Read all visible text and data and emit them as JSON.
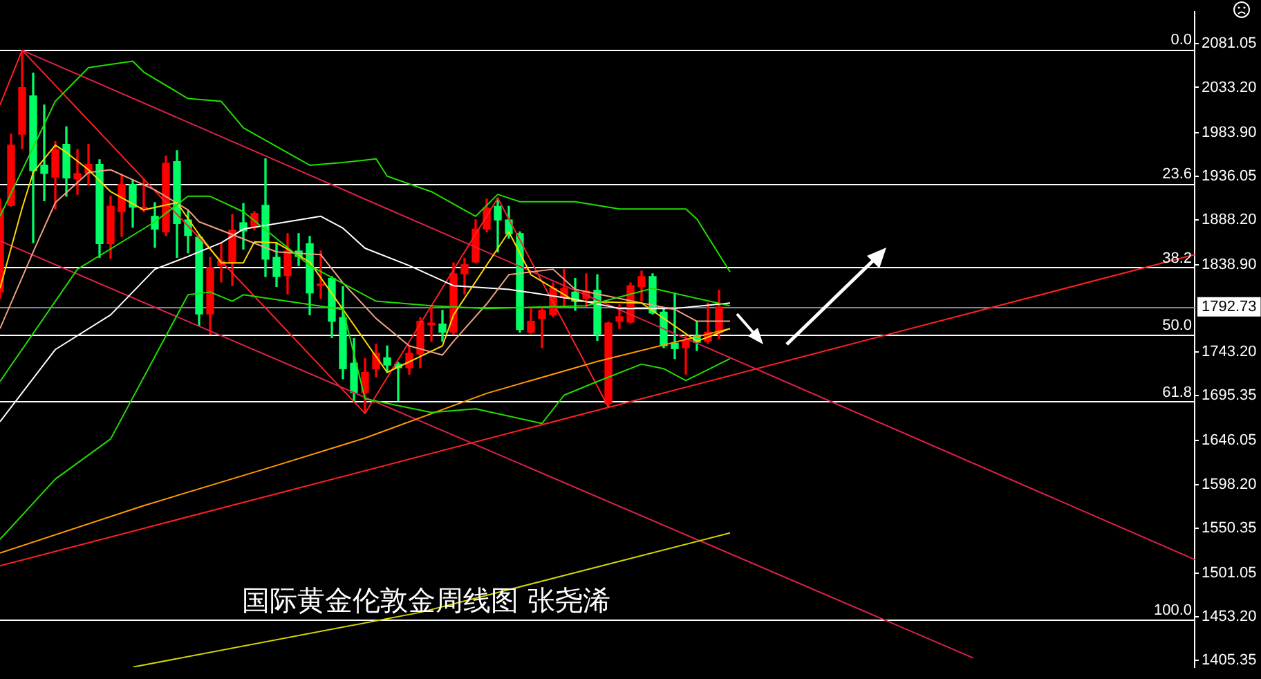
{
  "chart_data": {
    "type": "candlestick",
    "title": "国际黄金伦敦金周线图 张尧浠",
    "categories": [
      null,
      null,
      null,
      null,
      null,
      null,
      null,
      null,
      null,
      null,
      null,
      null,
      null,
      null,
      null,
      null,
      null,
      null,
      null,
      null,
      null,
      null,
      null,
      null,
      null,
      null,
      null,
      null,
      null,
      null,
      null,
      null,
      null,
      null,
      null,
      null,
      null,
      null,
      null,
      null,
      null,
      null,
      null,
      null,
      null,
      null,
      null,
      null,
      null,
      null,
      null,
      null,
      null,
      null,
      null,
      null,
      null,
      null,
      null,
      null,
      null,
      null,
      null,
      null,
      null,
      null,
      null,
      null,
      null,
      null,
      null,
      null,
      null,
      null,
      null,
      null,
      null,
      null,
      null,
      null,
      null,
      null,
      null,
      null,
      null,
      null,
      null,
      null,
      null,
      null,
      null,
      null,
      null,
      null,
      null,
      null,
      null,
      null,
      null,
      null,
      null,
      null,
      null,
      null,
      null,
      null,
      null,
      null,
      null
    ],
    "ohlc": [
      [
        1809,
        1911,
        1802,
        1900
      ],
      [
        1904,
        1982,
        1903,
        1970
      ],
      [
        1982,
        2074,
        1966,
        2033
      ],
      [
        2024,
        2049,
        1863,
        1942
      ],
      [
        1948,
        2014,
        1909,
        1939
      ],
      [
        1935,
        1974,
        1900,
        1965
      ],
      [
        1971,
        1990,
        1914,
        1934
      ],
      [
        1933,
        1965,
        1916,
        1939
      ],
      [
        1939,
        1971,
        1926,
        1949
      ],
      [
        1949,
        1954,
        1847,
        1862
      ],
      [
        1862,
        1914,
        1846,
        1903
      ],
      [
        1897,
        1938,
        1870,
        1927
      ],
      [
        1927,
        1932,
        1880,
        1902
      ],
      [
        1899,
        1933,
        1897,
        1902
      ],
      [
        1892,
        1907,
        1858,
        1878
      ],
      [
        1875,
        1958,
        1871,
        1950
      ],
      [
        1952,
        1964,
        1847,
        1884
      ],
      [
        1888,
        1898,
        1852,
        1871
      ],
      [
        1869,
        1872,
        1772,
        1785
      ],
      [
        1785,
        1847,
        1763,
        1836
      ],
      [
        1838,
        1862,
        1820,
        1843
      ],
      [
        1841,
        1894,
        1816,
        1877
      ],
      [
        1885,
        1906,
        1856,
        1876
      ],
      [
        1880,
        1897,
        1877,
        1895
      ],
      [
        1904,
        1955,
        1826,
        1845
      ],
      [
        1847,
        1863,
        1815,
        1826
      ],
      [
        1827,
        1873,
        1807,
        1854
      ],
      [
        1854,
        1873,
        1838,
        1848
      ],
      [
        1862,
        1870,
        1784,
        1808
      ],
      [
        1816,
        1854,
        1802,
        1818
      ],
      [
        1824,
        1826,
        1759,
        1777
      ],
      [
        1781,
        1815,
        1714,
        1725
      ],
      [
        1731,
        1758,
        1690,
        1699
      ],
      [
        1699,
        1736,
        1676,
        1721
      ],
      [
        1725,
        1752,
        1716,
        1742
      ],
      [
        1737,
        1750,
        1721,
        1729
      ],
      [
        1730,
        1732,
        1690,
        1726
      ],
      [
        1726,
        1750,
        1719,
        1742
      ],
      [
        1741,
        1781,
        1726,
        1777
      ],
      [
        1773,
        1794,
        1755,
        1775
      ],
      [
        1774,
        1789,
        1755,
        1765
      ],
      [
        1765,
        1841,
        1763,
        1829
      ],
      [
        1829,
        1846,
        1807,
        1839
      ],
      [
        1842,
        1888,
        1841,
        1878
      ],
      [
        1878,
        1911,
        1875,
        1901
      ],
      [
        1903,
        1912,
        1853,
        1888
      ],
      [
        1888,
        1903,
        1868,
        1873
      ],
      [
        1873,
        1875,
        1765,
        1768
      ],
      [
        1765,
        1792,
        1764,
        1777
      ],
      [
        1780,
        1792,
        1748,
        1789
      ],
      [
        1784,
        1819,
        1782,
        1813
      ],
      [
        1804,
        1834,
        1794,
        1813
      ],
      [
        1809,
        1824,
        1789,
        1799
      ],
      [
        1802,
        1829,
        1793,
        1810
      ],
      [
        1811,
        1828,
        1756,
        1763
      ],
      [
        1687,
        1776,
        1683,
        1775
      ],
      [
        1777,
        1795,
        1769,
        1782
      ],
      [
        1776,
        1819,
        1775,
        1816
      ],
      [
        1815,
        1832,
        1799,
        1826
      ],
      [
        1826,
        1829,
        1785,
        1786
      ],
      [
        1787,
        1792,
        1748,
        1750
      ],
      [
        1753,
        1808,
        1736,
        1747
      ],
      [
        1748,
        1761,
        1719,
        1756
      ],
      [
        1761,
        1777,
        1745,
        1754
      ],
      [
        1755,
        1797,
        1753,
        1765
      ],
      [
        1765,
        1811,
        1758,
        1792.73
      ],
      null,
      null,
      null,
      null,
      null,
      null,
      null,
      null,
      null,
      null,
      null,
      null,
      null,
      null,
      null,
      null,
      null,
      null,
      null,
      null,
      null,
      null,
      null,
      null,
      null,
      null,
      null,
      null,
      null,
      null,
      null,
      null,
      null,
      null,
      null,
      null,
      null,
      null,
      null,
      null,
      null,
      null,
      null
    ],
    "colors": [
      "#ff0000",
      "#ff0000",
      "#ff0000",
      "#00ff66",
      "#00ff66",
      "#ff0000",
      "#00ff66",
      "#ff0000",
      "#ff0000",
      "#00ff66",
      "#ff0000",
      "#ff0000",
      "#00ff66",
      "#ff0000",
      "#00ff66",
      "#ff0000",
      "#00ff66",
      "#00ff66",
      "#00ff66",
      "#ff0000",
      "#ff0000",
      "#ff0000",
      "#00ff66",
      "#ff0000",
      "#00ff66",
      "#00ff66",
      "#ff0000",
      "#00ff66",
      "#00ff66",
      "#ff0000",
      "#00ff66",
      "#00ff66",
      "#00ff66",
      "#ff0000",
      "#ff0000",
      "#00ff66",
      "#00ff66",
      "#ff0000",
      "#ff0000",
      "#ff0000",
      "#00ff66",
      "#ff0000",
      "#ff0000",
      "#ff0000",
      "#ff0000",
      "#00ff66",
      "#00ff66",
      "#00ff66",
      "#ff0000",
      "#ff0000",
      "#ff0000",
      "#ff0000",
      "#00ff66",
      "#ff0000",
      "#00ff66",
      "#ff0000",
      "#ff0000",
      "#ff0000",
      "#ff0000",
      "#00ff66",
      "#00ff66",
      "#00ff66",
      "#ff0000",
      "#00ff66",
      "#ff0000",
      "#ff0000",
      null,
      null,
      null,
      null,
      null,
      null,
      null,
      null,
      null,
      null,
      null,
      null,
      null,
      null,
      null,
      null,
      null,
      null,
      null,
      null,
      null,
      null,
      null,
      null,
      null,
      null,
      null,
      null,
      null,
      null,
      null,
      null,
      null,
      null,
      null,
      null,
      null,
      null,
      null,
      null,
      null,
      null,
      null
    ],
    "series": [
      {
        "type": "line",
        "color": "#22dd00",
        "values": [
          1892,
          null,
          null,
          null,
          null,
          2018,
          null,
          null,
          2055,
          null,
          null,
          null,
          2062,
          2050,
          null,
          null,
          null,
          2021,
          null,
          null,
          2018,
          null,
          1989,
          null,
          null,
          null,
          null,
          null,
          1948,
          null,
          null,
          1951,
          null,
          null,
          1955,
          1936,
          null,
          null,
          null,
          1919,
          null,
          null,
          null,
          1892,
          null,
          1916,
          null,
          1908,
          null,
          null,
          null,
          null,
          1908,
          null,
          null,
          null,
          1900,
          null,
          null,
          null,
          null,
          null,
          1900,
          1889,
          null,
          null,
          1831,
          null,
          null,
          null,
          null,
          null,
          null,
          null,
          null,
          null,
          null,
          null,
          null,
          null,
          null,
          null,
          null,
          null,
          null,
          null,
          null,
          null,
          null,
          null,
          null,
          null,
          null,
          null,
          null,
          null,
          null,
          null,
          null,
          null,
          null,
          null,
          null,
          null,
          null,
          null,
          null,
          null,
          null
        ]
      },
      {
        "type": "line",
        "color": "#22dd00",
        "values": [
          1711,
          null,
          null,
          null,
          null,
          null,
          null,
          1834,
          null,
          null,
          null,
          null,
          null,
          null,
          1886,
          null,
          null,
          1914,
          null,
          1914,
          null,
          null,
          1897,
          null,
          null,
          null,
          null,
          null,
          1838,
          null,
          null,
          null,
          null,
          null,
          1799,
          null,
          null,
          null,
          null,
          1794,
          null,
          null,
          null,
          null,
          1791,
          null,
          null,
          null,
          null,
          null,
          null,
          null,
          null,
          1794,
          null,
          null,
          null,
          null,
          null,
          1813,
          null,
          null,
          null,
          null,
          null,
          null,
          1794,
          null,
          null,
          null,
          null,
          null,
          null,
          null,
          null,
          null,
          null,
          null,
          null,
          null,
          null,
          null,
          null,
          null,
          null,
          null,
          null,
          null,
          null,
          null,
          null,
          null,
          null,
          null,
          null,
          null,
          null,
          null,
          null,
          null,
          null,
          null,
          null,
          null,
          null,
          null,
          null,
          null,
          null
        ]
      },
      {
        "type": "line",
        "color": "#22dd00",
        "values": [
          1538,
          null,
          null,
          null,
          null,
          1604,
          null,
          null,
          null,
          null,
          1648,
          null,
          null,
          null,
          null,
          null,
          null,
          1806,
          null,
          1809,
          null,
          1799,
          1806,
          null,
          null,
          null,
          null,
          null,
          null,
          null,
          null,
          1790,
          null,
          1692,
          null,
          null,
          null,
          null,
          null,
          1677,
          null,
          null,
          null,
          1681,
          null,
          null,
          null,
          null,
          null,
          1665,
          null,
          1696,
          null,
          null,
          1711,
          null,
          null,
          null,
          1730,
          null,
          1725,
          null,
          1712,
          null,
          null,
          null,
          1736,
          null,
          null,
          null,
          null,
          null,
          null,
          null,
          null,
          null,
          null,
          null,
          null,
          null,
          null,
          null,
          null,
          null,
          null,
          null,
          null,
          null,
          null,
          null,
          null,
          null,
          null,
          null,
          null,
          null,
          null,
          null,
          null,
          null,
          null,
          null,
          null,
          null,
          null,
          null,
          null,
          null,
          null
        ]
      },
      {
        "type": "line",
        "color": "#ffd700",
        "values": [
          1813,
          null,
          1901,
          1940,
          null,
          1970,
          1962,
          null,
          1943,
          null,
          1919,
          null,
          null,
          1899,
          null,
          null,
          1907,
          null,
          1872,
          null,
          1841,
          null,
          1841,
          1864,
          null,
          1863,
          null,
          null,
          1842,
          null,
          null,
          1790,
          null,
          null,
          null,
          1721,
          null,
          null,
          null,
          null,
          1750,
          1784,
          null,
          null,
          null,
          null,
          1875,
          null,
          1828,
          null,
          null,
          null,
          1799,
          null,
          null,
          null,
          null,
          null,
          1797,
          null,
          null,
          null,
          null,
          1755,
          null,
          null,
          1769,
          null,
          null,
          null,
          null,
          null,
          null,
          null,
          null,
          null,
          null,
          null,
          null,
          null,
          null,
          null,
          null,
          null,
          null,
          null,
          null,
          null,
          null,
          null,
          null,
          null,
          null,
          null,
          null,
          null,
          null,
          null,
          null,
          null,
          null,
          null,
          null,
          null,
          null,
          null,
          null,
          null,
          null
        ]
      },
      {
        "type": "line",
        "color": "#f0a080",
        "values": [
          1769,
          null,
          null,
          1853,
          null,
          1907,
          null,
          null,
          1940,
          null,
          1943,
          null,
          null,
          null,
          1921,
          null,
          null,
          1899,
          1886,
          null,
          null,
          1872,
          null,
          null,
          null,
          1853,
          null,
          null,
          null,
          1850,
          null,
          1819,
          null,
          null,
          1780,
          null,
          null,
          1750,
          null,
          null,
          1740,
          1755,
          null,
          null,
          1796,
          null,
          1828,
          null,
          null,
          null,
          1834,
          null,
          1812,
          null,
          null,
          null,
          null,
          null,
          1797,
          null,
          null,
          1790,
          null,
          1777,
          null,
          null,
          1777,
          null,
          null,
          null,
          null,
          null,
          null,
          null,
          null,
          null,
          null,
          null,
          null,
          null,
          null,
          null,
          null,
          null,
          null,
          null,
          null,
          null,
          null,
          null,
          null,
          null,
          null,
          null,
          null,
          null,
          null,
          null,
          null,
          null,
          null,
          null,
          null,
          null,
          null,
          null,
          null,
          null,
          null
        ]
      },
      {
        "type": "line",
        "color": "#ffffff",
        "values": [
          1667,
          null,
          null,
          null,
          null,
          1746,
          null,
          null,
          null,
          null,
          1784,
          null,
          null,
          null,
          1834,
          null,
          null,
          1848,
          null,
          null,
          1863,
          null,
          1878,
          null,
          1882,
          null,
          null,
          null,
          null,
          1892,
          null,
          1879,
          null,
          1857,
          null,
          null,
          null,
          1838,
          null,
          null,
          null,
          1816,
          null,
          null,
          null,
          null,
          1812,
          null,
          null,
          null,
          null,
          null,
          1801,
          null,
          null,
          null,
          1791,
          null,
          null,
          null,
          null,
          1791,
          null,
          null,
          null,
          null,
          1797,
          null,
          null,
          null,
          null,
          null,
          null,
          null,
          null,
          null,
          null,
          null,
          null,
          null,
          null,
          null,
          null,
          null,
          null,
          null,
          null,
          null,
          null,
          null,
          null,
          null,
          null,
          null,
          null,
          null,
          null,
          null,
          null,
          null,
          null,
          null,
          null,
          null,
          null,
          null,
          null,
          null,
          null
        ]
      },
      {
        "type": "line",
        "color": "#ff9900",
        "values": [
          1523,
          null,
          null,
          null,
          null,
          null,
          null,
          null,
          null,
          null,
          null,
          null,
          null,
          1575,
          null,
          null,
          null,
          null,
          null,
          null,
          null,
          null,
          null,
          null,
          null,
          1619,
          null,
          null,
          null,
          null,
          null,
          null,
          null,
          1649,
          null,
          null,
          null,
          null,
          null,
          null,
          null,
          null,
          null,
          null,
          1698,
          null,
          null,
          null,
          null,
          null,
          null,
          null,
          null,
          null,
          1733,
          null,
          null,
          null,
          null,
          null,
          null,
          null,
          null,
          null,
          null,
          null,
          1769,
          null,
          null,
          null,
          null,
          null,
          null,
          null,
          null,
          null,
          null,
          null,
          null,
          null,
          null,
          null,
          null,
          null,
          null,
          null,
          null,
          null,
          null,
          null,
          null,
          null,
          null,
          null,
          null,
          null,
          null,
          null,
          null,
          null,
          null,
          null,
          null,
          null,
          null,
          null,
          null,
          null,
          null
        ]
      },
      {
        "type": "line",
        "color": "#d4d400",
        "values": [
          null,
          null,
          null,
          null,
          null,
          null,
          null,
          null,
          null,
          null,
          null,
          null,
          1398,
          null,
          null,
          null,
          null,
          null,
          null,
          null,
          null,
          null,
          null,
          null,
          null,
          null,
          null,
          null,
          null,
          null,
          null,
          null,
          null,
          null,
          null,
          null,
          null,
          null,
          1458,
          null,
          null,
          null,
          null,
          null,
          null,
          null,
          null,
          null,
          null,
          null,
          null,
          null,
          null,
          null,
          null,
          null,
          null,
          null,
          null,
          null,
          null,
          null,
          null,
          null,
          null,
          null,
          1545,
          null,
          null,
          null,
          null,
          null,
          null,
          null,
          null,
          null,
          null,
          null,
          null,
          null,
          null,
          null,
          null,
          null,
          null,
          null,
          null,
          null,
          null,
          null,
          null,
          null,
          null,
          null,
          null,
          null,
          null,
          null,
          null,
          null,
          null,
          null,
          null,
          null,
          null,
          null,
          null,
          null,
          null
        ]
      },
      {
        "type": "line",
        "color": "#e0204a",
        "values": [
          null,
          null,
          2074,
          null,
          null,
          null,
          null,
          null,
          null,
          null,
          null,
          null,
          null,
          null,
          null,
          null,
          null,
          null,
          null,
          null,
          null,
          null,
          null,
          null,
          null,
          null,
          null,
          null,
          null,
          null,
          null,
          null,
          null,
          null,
          null,
          null,
          null,
          null,
          null,
          null,
          null,
          null,
          null,
          null,
          null,
          null,
          null,
          null,
          null,
          null,
          null,
          null,
          null,
          null,
          null,
          null,
          null,
          null,
          null,
          null,
          null,
          null,
          null,
          null,
          null,
          null,
          null,
          null,
          null,
          null,
          null,
          null,
          null,
          null,
          null,
          null,
          null,
          null,
          null,
          null,
          null,
          null,
          null,
          null,
          null,
          null,
          null,
          null,
          null,
          null,
          null,
          null,
          null,
          null,
          null,
          null,
          null,
          null,
          null,
          null,
          null,
          null,
          null,
          null,
          null,
          null,
          null,
          null,
          1516
        ]
      },
      {
        "type": "line",
        "color": "#e0204a",
        "values": [
          1865,
          null,
          null,
          null,
          null,
          null,
          null,
          null,
          null,
          null,
          null,
          null,
          null,
          null,
          null,
          null,
          null,
          null,
          null,
          null,
          null,
          null,
          null,
          null,
          null,
          null,
          null,
          null,
          null,
          null,
          null,
          null,
          null,
          null,
          null,
          null,
          null,
          null,
          null,
          null,
          null,
          null,
          null,
          null,
          null,
          null,
          null,
          null,
          null,
          null,
          null,
          null,
          null,
          null,
          null,
          null,
          null,
          null,
          null,
          null,
          null,
          null,
          null,
          null,
          null,
          null,
          null,
          null,
          null,
          null,
          null,
          null,
          null,
          null,
          null,
          null,
          null,
          null,
          null,
          null,
          null,
          null,
          null,
          null,
          null,
          null,
          null,
          null,
          1408,
          null,
          null,
          null,
          null,
          null,
          null,
          null,
          null,
          null,
          null,
          null,
          null,
          null,
          null,
          null,
          null,
          null,
          null,
          null,
          null
        ]
      },
      {
        "type": "line",
        "color": "#ff2020",
        "values": [
          2014,
          null,
          2074,
          null,
          null,
          null,
          null,
          null,
          null,
          null,
          null,
          null,
          null,
          null,
          null,
          null,
          null,
          null,
          null,
          null,
          null,
          null,
          null,
          null,
          null,
          null,
          null,
          null,
          null,
          null,
          null,
          null,
          null,
          1676,
          null,
          null,
          null,
          null,
          null,
          null,
          null,
          null,
          null,
          null,
          null,
          1912,
          null,
          null,
          null,
          null,
          null,
          null,
          null,
          null,
          null,
          1683,
          null,
          null,
          null,
          null,
          null,
          null,
          null,
          null,
          null,
          null,
          null,
          null,
          null,
          null,
          null,
          null,
          null,
          null,
          null,
          null,
          null,
          null,
          null,
          null,
          null,
          null,
          null,
          null,
          null,
          null,
          null,
          null,
          null,
          null,
          null,
          null,
          null,
          null,
          null,
          null,
          null,
          null,
          null,
          null,
          null,
          null,
          null,
          null,
          null,
          null,
          null,
          null,
          null
        ]
      },
      {
        "type": "line",
        "color": "#ff2020",
        "values": [
          1509,
          null,
          null,
          null,
          null,
          null,
          null,
          null,
          null,
          null,
          null,
          null,
          null,
          null,
          null,
          null,
          null,
          null,
          null,
          null,
          null,
          null,
          null,
          null,
          null,
          null,
          null,
          null,
          null,
          null,
          null,
          null,
          null,
          null,
          null,
          null,
          null,
          null,
          null,
          null,
          null,
          null,
          null,
          null,
          null,
          null,
          null,
          null,
          null,
          null,
          null,
          null,
          null,
          null,
          null,
          null,
          null,
          null,
          null,
          null,
          null,
          null,
          null,
          null,
          null,
          null,
          null,
          null,
          null,
          null,
          null,
          null,
          null,
          null,
          null,
          null,
          null,
          null,
          null,
          null,
          null,
          null,
          null,
          null,
          null,
          null,
          null,
          null,
          null,
          null,
          null,
          null,
          null,
          null,
          null,
          null,
          null,
          null,
          null,
          null,
          null,
          null,
          null,
          null,
          null,
          null,
          null,
          null,
          1850
        ]
      }
    ],
    "ylim": [
      1398,
      2116
    ],
    "yticks": [
      1405.35,
      {
        "value": 1453.2,
        "label": "1453.20"
      },
      1501.05,
      1550.35,
      {
        "value": 1598.2,
        "label": "1598.20"
      },
      1646.05,
      1695.35,
      {
        "value": 1743.2,
        "label": "1743.20"
      },
      {
        "value": 1838.9,
        "label": "1838.90"
      },
      {
        "value": 1888.2,
        "label": "1888.20"
      },
      1936.05,
      {
        "value": 1983.9,
        "label": "1983.90"
      },
      {
        "value": 2033.2,
        "label": "2033.20"
      },
      2081.05
    ],
    "ref_lines": [
      {
        "axis": "y",
        "value": 2075
      },
      {
        "axis": "y",
        "value": 1928
      },
      {
        "axis": "y",
        "value": 1836
      },
      {
        "axis": "y",
        "value": 1762
      },
      {
        "axis": "y",
        "value": 1689
      },
      {
        "axis": "y",
        "value": 1450
      },
      {
        "axis": "y",
        "value": 1792.73,
        "label": "1792.73",
        "color": "#778899"
      }
    ],
    "annotations": [
      {
        "text": "0.0",
        "y": 2075
      },
      {
        "text": "23.6",
        "y": 1928
      },
      {
        "text": "38.2",
        "y": 1836
      },
      {
        "text": "50.0",
        "y": 1762
      },
      {
        "text": "61.8",
        "y": 1689
      },
      {
        "text": "100.0",
        "y": 1450
      }
    ],
    "grid": false,
    "legend": false,
    "tick_labels": "y",
    "line_style": "solid"
  }
}
